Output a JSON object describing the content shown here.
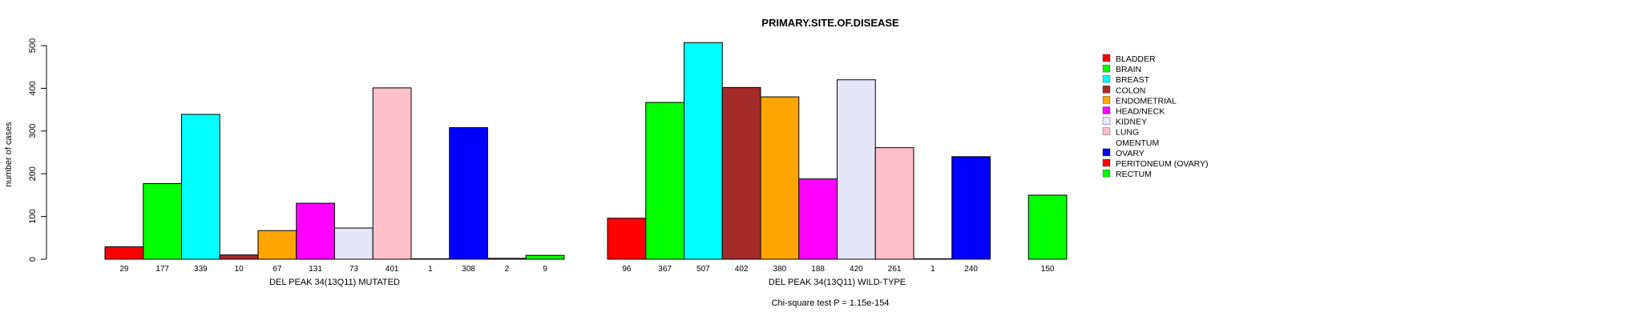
{
  "chart_data": {
    "type": "bar",
    "title": "PRIMARY.SITE.OF.DISEASE",
    "ylabel": "number of cases",
    "ylim": [
      0,
      500
    ],
    "yticks": [
      0,
      100,
      200,
      300,
      400,
      500
    ],
    "footnote": "Chi-square test P = 1.15e-154",
    "legend": {
      "placement": "right",
      "entries": [
        {
          "label": "BLADDER",
          "color": "#FF0000"
        },
        {
          "label": "BRAIN",
          "color": "#00FF00"
        },
        {
          "label": "BREAST",
          "color": "#00FFFF"
        },
        {
          "label": "COLON",
          "color": "#A52A2A"
        },
        {
          "label": "ENDOMETRIAL",
          "color": "#FFA500"
        },
        {
          "label": "HEAD/NECK",
          "color": "#FF00FF"
        },
        {
          "label": "KIDNEY",
          "color": "#E6E6FA"
        },
        {
          "label": "LUNG",
          "color": "#FFC0CB"
        },
        {
          "label": "OMENTUM",
          "color": "#FFFFFF"
        },
        {
          "label": "OVARY",
          "color": "#0000FF"
        },
        {
          "label": "PERITONEUM (OVARY)",
          "color": "#FF0000"
        },
        {
          "label": "RECTUM",
          "color": "#00FF00"
        }
      ]
    },
    "panels": [
      {
        "xlabel": "DEL PEAK 34(13Q11) MUTATED",
        "bars": [
          {
            "category": "BLADDER",
            "value": 29,
            "label": "29"
          },
          {
            "category": "BRAIN",
            "value": 177,
            "label": "177"
          },
          {
            "category": "BREAST",
            "value": 339,
            "label": "339"
          },
          {
            "category": "COLON",
            "value": 10,
            "label": "10"
          },
          {
            "category": "ENDOMETRIAL",
            "value": 67,
            "label": "67"
          },
          {
            "category": "HEAD/NECK",
            "value": 131,
            "label": "131"
          },
          {
            "category": "KIDNEY",
            "value": 73,
            "label": "73"
          },
          {
            "category": "LUNG",
            "value": 401,
            "label": "401"
          },
          {
            "category": "OMENTUM",
            "value": 1,
            "label": "1"
          },
          {
            "category": "OVARY",
            "value": 308,
            "label": "308"
          },
          {
            "category": "PERITONEUM (OVARY)",
            "value": 2,
            "label": "2"
          },
          {
            "category": "RECTUM",
            "value": 9,
            "label": "9"
          }
        ]
      },
      {
        "xlabel": "DEL PEAK 34(13Q11) WILD-TYPE",
        "bars": [
          {
            "category": "BLADDER",
            "value": 96,
            "label": "96"
          },
          {
            "category": "BRAIN",
            "value": 367,
            "label": "367"
          },
          {
            "category": "BREAST",
            "value": 507,
            "label": "507"
          },
          {
            "category": "COLON",
            "value": 402,
            "label": "402"
          },
          {
            "category": "ENDOMETRIAL",
            "value": 380,
            "label": "380"
          },
          {
            "category": "HEAD/NECK",
            "value": 188,
            "label": "188"
          },
          {
            "category": "KIDNEY",
            "value": 420,
            "label": "420"
          },
          {
            "category": "LUNG",
            "value": 261,
            "label": "261"
          },
          {
            "category": "OMENTUM",
            "value": 1,
            "label": "1"
          },
          {
            "category": "OVARY",
            "value": 240,
            "label": "240"
          },
          {
            "category": "PERITONEUM (OVARY)",
            "value": 0,
            "label": ""
          },
          {
            "category": "RECTUM",
            "value": 150,
            "label": "150"
          }
        ]
      }
    ]
  }
}
